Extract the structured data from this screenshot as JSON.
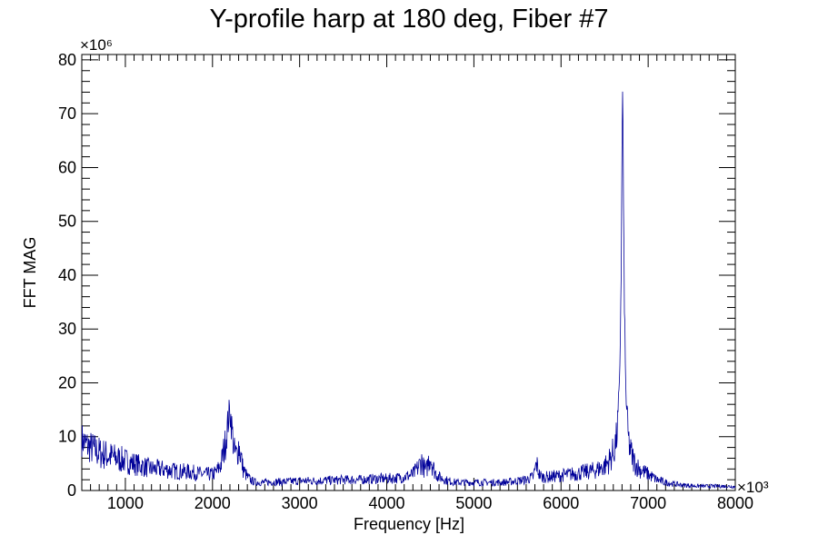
{
  "chart_data": {
    "type": "line",
    "title": "Y-profile harp at 180 deg, Fiber #7",
    "xlabel": "Frequency [Hz]",
    "ylabel": "FFT MAG",
    "x_exponent_label": "×10³",
    "y_exponent_label": "×10⁶",
    "xlim": [
      500,
      8000
    ],
    "ylim": [
      0,
      81
    ],
    "x_ticks": [
      1000,
      2000,
      3000,
      4000,
      5000,
      6000,
      7000,
      8000
    ],
    "x_tick_labels": [
      "1000",
      "2000",
      "3000",
      "4000",
      "5000",
      "6000",
      "7000",
      "8000"
    ],
    "y_ticks": [
      0,
      10,
      20,
      30,
      40,
      50,
      60,
      70,
      80
    ],
    "y_tick_labels": [
      "0",
      "10",
      "20",
      "30",
      "40",
      "50",
      "60",
      "70",
      "80"
    ],
    "grid": false,
    "legend": "none",
    "series": [
      {
        "color": "#000099",
        "x": [
          500,
          550,
          600,
          700,
          800,
          900,
          1000,
          1100,
          1200,
          1300,
          1400,
          1500,
          1600,
          1700,
          1800,
          1900,
          2000,
          2050,
          2100,
          2150,
          2180,
          2200,
          2220,
          2250,
          2280,
          2300,
          2320,
          2350,
          2400,
          2450,
          2500,
          2600,
          2700,
          2800,
          2900,
          3000,
          3100,
          3200,
          3300,
          3400,
          3500,
          3600,
          3700,
          3800,
          3900,
          4000,
          4100,
          4200,
          4300,
          4350,
          4400,
          4420,
          4450,
          4480,
          4500,
          4520,
          4550,
          4600,
          4700,
          4800,
          4900,
          5000,
          5100,
          5200,
          5300,
          5400,
          5500,
          5600,
          5680,
          5720,
          5750,
          5780,
          5800,
          5850,
          5900,
          6000,
          6100,
          6200,
          6300,
          6400,
          6500,
          6550,
          6600,
          6640,
          6670,
          6690,
          6700,
          6705,
          6710,
          6720,
          6740,
          6770,
          6800,
          6850,
          6900,
          7000,
          7100,
          7200,
          7300,
          7400,
          7500,
          7600,
          7700,
          7800,
          7900,
          8000
        ],
        "y": [
          9.5,
          8.5,
          8.0,
          7.0,
          6.5,
          6.0,
          5.5,
          5.0,
          4.5,
          4.0,
          4.0,
          3.8,
          3.5,
          3.5,
          3.3,
          3.0,
          3.0,
          3.5,
          5.0,
          9.0,
          13.0,
          15.0,
          12.0,
          7.0,
          6.5,
          8.5,
          7.0,
          4.0,
          2.5,
          1.8,
          1.5,
          1.5,
          1.6,
          1.6,
          1.7,
          1.8,
          1.8,
          1.8,
          1.9,
          1.9,
          2.0,
          2.0,
          2.0,
          2.1,
          2.2,
          2.2,
          2.3,
          2.5,
          3.0,
          4.0,
          5.5,
          4.5,
          3.5,
          5.5,
          6.5,
          5.0,
          3.5,
          2.5,
          1.8,
          1.5,
          1.5,
          1.5,
          1.5,
          1.5,
          1.5,
          1.6,
          1.8,
          2.0,
          2.5,
          5.0,
          3.0,
          2.5,
          2.5,
          2.5,
          2.6,
          2.8,
          3.0,
          3.2,
          3.5,
          3.8,
          4.5,
          5.5,
          7.0,
          10.0,
          18.0,
          40.0,
          62.0,
          77.0,
          70.0,
          45.0,
          20.0,
          10.0,
          7.0,
          5.0,
          4.0,
          3.0,
          2.0,
          1.5,
          1.2,
          1.0,
          0.9,
          0.8,
          0.8,
          0.8,
          0.8,
          0.7
        ]
      }
    ]
  }
}
